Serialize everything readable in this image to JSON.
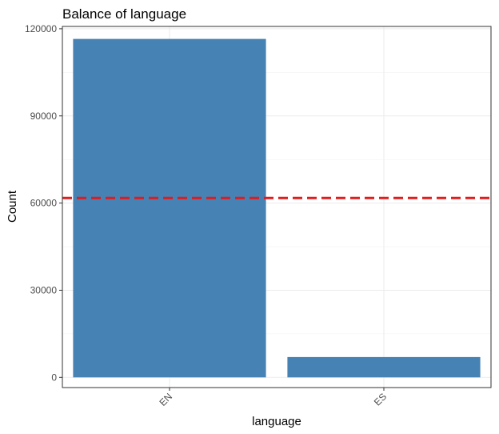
{
  "chart_data": {
    "type": "bar",
    "title": "Balance of language",
    "xlabel": "language",
    "ylabel": "Count",
    "categories": [
      "EN",
      "ES"
    ],
    "values": [
      116500,
      7000
    ],
    "ylim": [
      -3500,
      120800
    ],
    "yticks": [
      0,
      30000,
      60000,
      90000,
      120000
    ],
    "ytick_labels": [
      "0",
      "30000",
      "60000",
      "90000",
      "120000"
    ],
    "reference_line": {
      "value": 61750,
      "style": "dashed",
      "color": "#e41a1c"
    },
    "bar_color": "#4682b4",
    "grid": true,
    "legend": "none"
  }
}
